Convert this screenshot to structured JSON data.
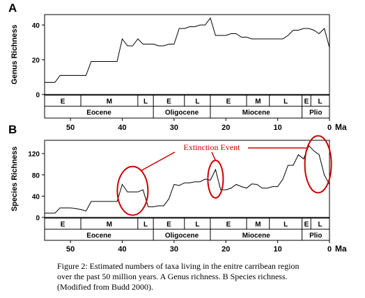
{
  "chart_data": [
    {
      "type": "line",
      "panel_label": "A",
      "ylabel": "Genus Richness",
      "xlabel": "Ma",
      "xlim": [
        55,
        0
      ],
      "ylim": [
        0,
        46
      ],
      "y_ticks": [
        0,
        20,
        40
      ],
      "x_ticks": [
        50,
        40,
        30,
        20,
        10,
        0
      ],
      "grid": false,
      "x": [
        55,
        53,
        52,
        51,
        50,
        47,
        46,
        45,
        44,
        42,
        41,
        40,
        39,
        38,
        37,
        36,
        35,
        34,
        33,
        32,
        31,
        30,
        29,
        28,
        27,
        26,
        25,
        24,
        23,
        22,
        21,
        20,
        19,
        18,
        17,
        16,
        15,
        14,
        13,
        12,
        11,
        10,
        9,
        8,
        7,
        6,
        5,
        4,
        3,
        2,
        1,
        0
      ],
      "values": [
        7,
        7,
        11,
        11,
        11,
        11,
        19,
        19,
        19,
        19,
        19,
        32,
        28,
        28,
        32,
        29,
        29,
        29,
        28,
        28,
        29,
        29,
        38,
        38,
        39,
        39,
        40,
        40,
        44,
        34,
        34,
        34,
        35,
        35,
        33,
        33,
        32,
        32,
        32,
        32,
        32,
        32,
        32,
        34,
        37,
        37,
        38,
        38,
        37,
        35,
        38,
        27
      ]
    },
    {
      "type": "line",
      "panel_label": "B",
      "ylabel": "Species Richness",
      "xlabel": "Ma",
      "xlim": [
        55,
        0
      ],
      "ylim": [
        0,
        145
      ],
      "y_ticks": [
        0,
        40,
        80,
        120
      ],
      "x_ticks": [
        50,
        40,
        30,
        20,
        10,
        0
      ],
      "grid": false,
      "annotation": "Extinction Event",
      "annotation_color": "#cc0000",
      "x": [
        55,
        53,
        52,
        50,
        48,
        47,
        46,
        44,
        42,
        41,
        40,
        39,
        38,
        37,
        36,
        35,
        34,
        33,
        32,
        31,
        30,
        29,
        28,
        27,
        26,
        25,
        24,
        23,
        22,
        21,
        20,
        19,
        18,
        17,
        16,
        15,
        14,
        13,
        12,
        11,
        10,
        9,
        8,
        7,
        6,
        5,
        4,
        3,
        2,
        1,
        0
      ],
      "values": [
        8,
        8,
        18,
        18,
        15,
        12,
        30,
        30,
        30,
        30,
        62,
        48,
        48,
        48,
        52,
        20,
        20,
        22,
        22,
        35,
        62,
        60,
        65,
        65,
        67,
        67,
        72,
        70,
        90,
        52,
        52,
        55,
        62,
        58,
        55,
        63,
        62,
        55,
        55,
        58,
        58,
        72,
        98,
        98,
        118,
        110,
        135,
        125,
        118,
        80,
        62
      ]
    }
  ],
  "time_scale": {
    "epochs": [
      {
        "name": "Eocene",
        "start": 55,
        "end": 34
      },
      {
        "name": "Oligocene",
        "start": 34,
        "end": 23
      },
      {
        "name": "Miocene",
        "start": 23,
        "end": 5.3
      },
      {
        "name": "Plio",
        "start": 5.3,
        "end": 0
      }
    ],
    "subdivisions": [
      {
        "name": "E",
        "start": 55,
        "end": 48
      },
      {
        "name": "M",
        "start": 48,
        "end": 37
      },
      {
        "name": "L",
        "start": 37,
        "end": 34
      },
      {
        "name": "E",
        "start": 34,
        "end": 28
      },
      {
        "name": "L",
        "start": 28,
        "end": 23
      },
      {
        "name": "E",
        "start": 23,
        "end": 16
      },
      {
        "name": "M",
        "start": 16,
        "end": 11.6
      },
      {
        "name": "L",
        "start": 11.6,
        "end": 5.3
      },
      {
        "name": "E",
        "start": 5.3,
        "end": 3.6
      },
      {
        "name": "L",
        "start": 3.6,
        "end": 0
      }
    ]
  },
  "caption": [
    "Figure 2: Estimated numbers of taxa living in the enitre carribean region",
    "over the past 50 million years. A Genus richness. B Species richness.",
    "(Modified from Budd 2000)."
  ]
}
